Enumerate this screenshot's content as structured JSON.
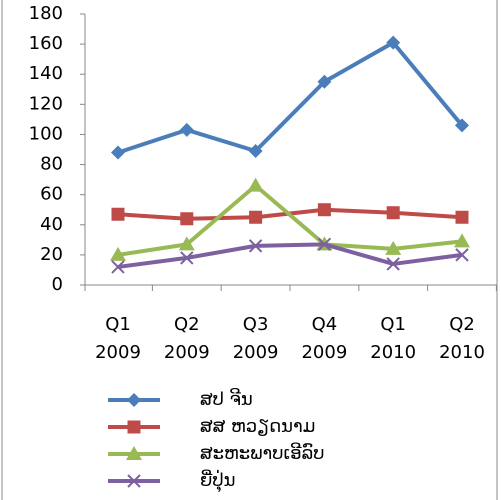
{
  "chart_data": {
    "type": "line",
    "categories": [
      "Q1 2009",
      "Q2 2009",
      "Q3 2009",
      "Q4 2009",
      "Q1 2010",
      "Q2 2010"
    ],
    "series": [
      {
        "name": "ສປ ຈີນ",
        "color": "#4a7ebb",
        "marker": "diamond",
        "values": [
          88,
          103,
          89,
          135,
          161,
          106
        ]
      },
      {
        "name": "ສສ ຫວຽດນາມ",
        "color": "#be4b48",
        "marker": "square",
        "values": [
          47,
          44,
          45,
          50,
          48,
          45
        ]
      },
      {
        "name": "ສະຫະພາບເອີລົບ",
        "color": "#98b954",
        "marker": "triangle",
        "values": [
          20,
          27,
          66,
          27,
          24,
          29
        ]
      },
      {
        "name": "ຍີ່ປຸ່ນ",
        "color": "#7d60a0",
        "marker": "x",
        "values": [
          12,
          18,
          26,
          27,
          14,
          20
        ]
      }
    ],
    "ylim": [
      0,
      180
    ],
    "yticks": [
      0,
      20,
      40,
      60,
      80,
      100,
      120,
      140,
      160,
      180
    ],
    "grid": false
  }
}
